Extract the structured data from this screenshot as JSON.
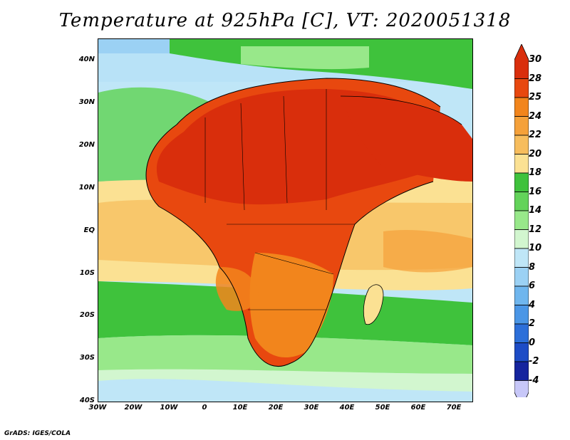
{
  "title": "Temperature at 925hPa [C], VT: 2020051318",
  "credit": "GrADS: IGES/COLA",
  "map": {
    "lat_ticks": [
      "40N",
      "30N",
      "20N",
      "10N",
      "EQ",
      "10S",
      "20S",
      "30S",
      "40S"
    ],
    "lon_ticks": [
      "30W",
      "20W",
      "10W",
      "0",
      "10E",
      "20E",
      "30E",
      "40E",
      "50E",
      "60E",
      "70E"
    ]
  },
  "colorbar": {
    "labels": [
      "30",
      "28",
      "25",
      "24",
      "22",
      "20",
      "18",
      "16",
      "14",
      "12",
      "10",
      "8",
      "6",
      "4",
      "2",
      "0",
      "-2",
      "-4"
    ],
    "colors": [
      "#d92e0c",
      "#e8480f",
      "#f2851c",
      "#f5a13a",
      "#f7bd5d",
      "#fbe193",
      "#3fc23c",
      "#63d35a",
      "#98e88a",
      "#d2f6cf",
      "#bfe6f7",
      "#9bd1f4",
      "#6fb6ee",
      "#4a96e6",
      "#2c6fd9",
      "#1d4cc6",
      "#15249e",
      "#c7c7f8"
    ]
  }
}
